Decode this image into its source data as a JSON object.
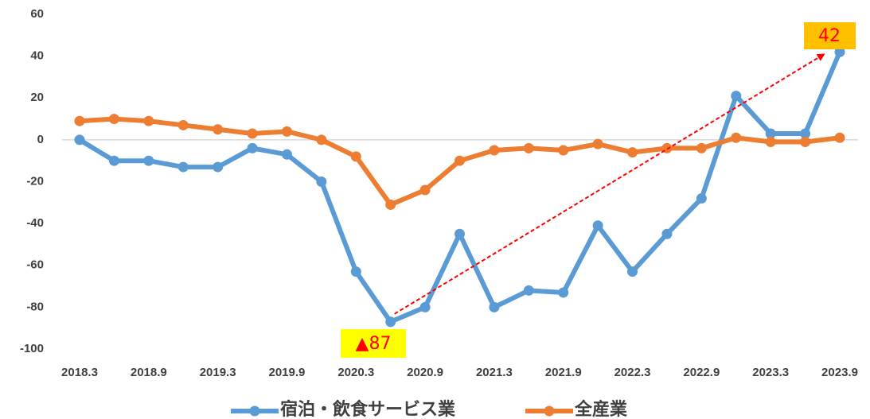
{
  "chart_data": {
    "type": "line",
    "categories": [
      "2018.3",
      null,
      "2018.9",
      null,
      "2019.3",
      null,
      "2019.9",
      null,
      "2020.3",
      null,
      "2020.9",
      null,
      "2021.3",
      null,
      "2021.9",
      null,
      "2022.3",
      null,
      "2022.9",
      null,
      "2023.3",
      null,
      "2023.9"
    ],
    "series": [
      {
        "name": "宿泊・飲食サービス業",
        "color": "#5b9bd5",
        "values": [
          0,
          -10,
          -10,
          -13,
          -13,
          -4,
          -7,
          -20,
          -63,
          -87,
          -80,
          -45,
          -80,
          -72,
          -73,
          -41,
          -63,
          -45,
          -28,
          21,
          3,
          3,
          42
        ]
      },
      {
        "name": "全産業",
        "color": "#ed7d31",
        "values": [
          9,
          10,
          9,
          7,
          5,
          3,
          4,
          0,
          -8,
          -31,
          -24,
          -10,
          -5,
          -4,
          -5,
          -2,
          -6,
          -4,
          -4,
          1,
          -1,
          -1,
          1
        ]
      }
    ],
    "ylim": [
      -100,
      60
    ],
    "yticks": [
      -100,
      -80,
      -60,
      -40,
      -20,
      0,
      20,
      40,
      60
    ],
    "grid": false,
    "legend": "bottom",
    "annotations": [
      "▲87",
      "42"
    ]
  }
}
